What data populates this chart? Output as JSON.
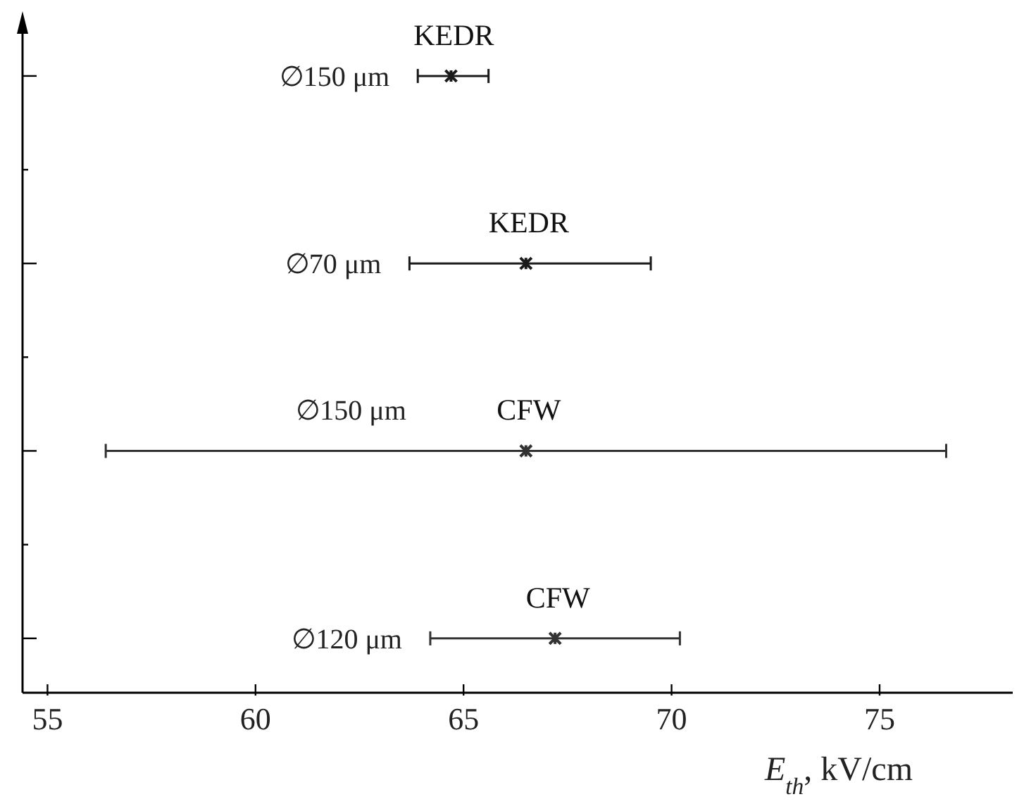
{
  "chart_data": {
    "type": "scatter",
    "orientation": "horizontal",
    "xlabel": "E$_{th}$, kV/cm",
    "categories": [
      "∅150 μm",
      "∅70 μm",
      "∅150 μm",
      "∅120 μm"
    ],
    "series": [
      {
        "name": "KEDR",
        "color": "#1a1a1a",
        "values": [
          64.7,
          66.5,
          null,
          null
        ],
        "errors": [
          [
            63.9,
            65.6
          ],
          [
            63.7,
            69.5
          ],
          null,
          null
        ]
      },
      {
        "name": "CFW",
        "color": "#333333",
        "values": [
          null,
          null,
          66.5,
          67.2
        ],
        "errors": [
          null,
          null,
          [
            56.4,
            76.6
          ],
          [
            64.2,
            70.2
          ]
        ]
      }
    ],
    "xlim": [
      54.4,
      78.2
    ],
    "xticks": [
      55,
      60,
      65,
      70,
      75
    ],
    "tick_labels": "x",
    "marker": "cross",
    "grid": false,
    "legend": false
  }
}
